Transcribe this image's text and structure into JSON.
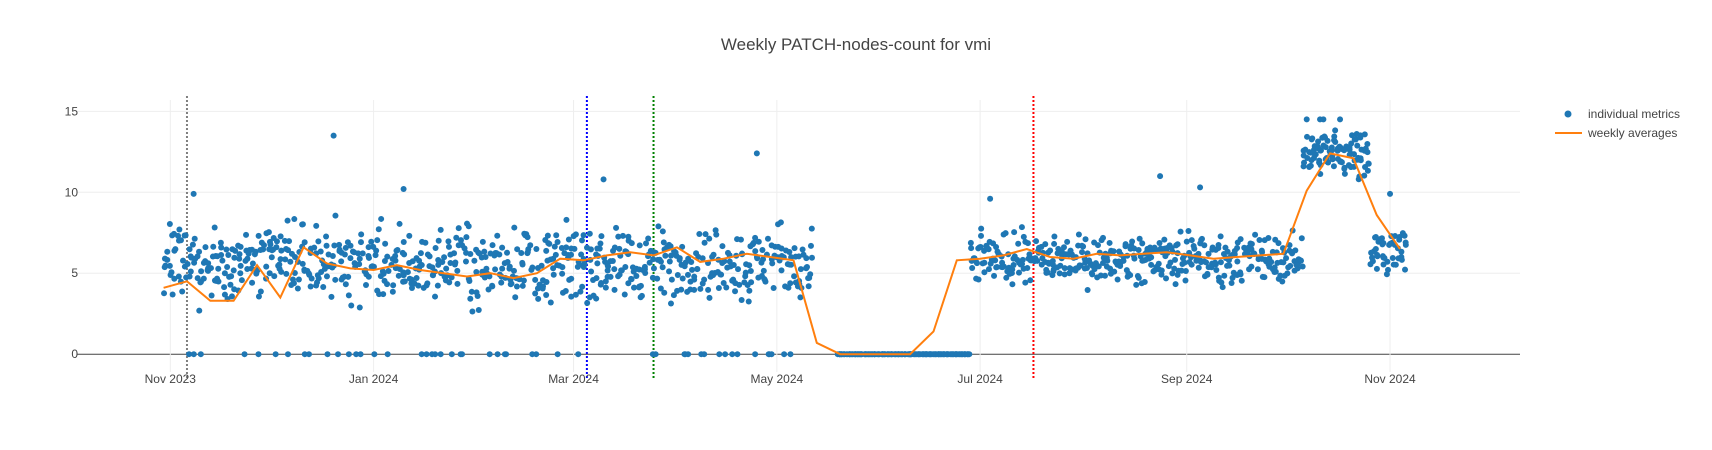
{
  "chart_data": {
    "type": "scatter",
    "title": "Weekly PATCH-nodes-count for vmi",
    "xlabel": "",
    "ylabel": "",
    "x_range": [
      "2023-10-04",
      "2024-12-10"
    ],
    "ylim": [
      -1.1,
      15.7
    ],
    "x_ticks": [
      {
        "date": "2023-11-01",
        "label": "Nov 2023"
      },
      {
        "date": "2024-01-01",
        "label": "Jan 2024"
      },
      {
        "date": "2024-03-01",
        "label": "Mar 2024"
      },
      {
        "date": "2024-05-01",
        "label": "May 2024"
      },
      {
        "date": "2024-07-01",
        "label": "Jul 2024"
      },
      {
        "date": "2024-09-01",
        "label": "Sep 2024"
      },
      {
        "date": "2024-11-01",
        "label": "Nov 2024"
      }
    ],
    "y_ticks": [
      0,
      5,
      10,
      15
    ],
    "grid": true,
    "legend_position": "top-right",
    "vlines": [
      {
        "date": "2023-11-06",
        "color": "#7f7f7f",
        "style": "dotted"
      },
      {
        "date": "2024-03-05",
        "color": "#0000ff",
        "style": "dotted"
      },
      {
        "date": "2024-03-25",
        "color": "#008000",
        "style": "dotted"
      },
      {
        "date": "2024-07-17",
        "color": "#ff0000",
        "style": "dotted"
      }
    ],
    "series": [
      {
        "name": "individual metrics",
        "mode": "markers",
        "color": "#1f77b4",
        "segments": [
          {
            "start": "2023-10-30",
            "end": "2024-05-11",
            "center": 5.6,
            "spread": 1.7,
            "points_per_day": 4,
            "zero_fraction": 0.06
          },
          {
            "start": "2024-05-19",
            "end": "2024-06-27",
            "center": 0,
            "spread": 0,
            "points_per_day": 4,
            "zero_fraction": 1
          },
          {
            "start": "2024-06-28",
            "end": "2024-10-05",
            "center": 5.9,
            "spread": 1.1,
            "points_per_day": 4,
            "zero_fraction": 0
          },
          {
            "start": "2024-10-06",
            "end": "2024-10-25",
            "center": 12.4,
            "spread": 1.1,
            "points_per_day": 5,
            "zero_fraction": 0
          },
          {
            "start": "2024-10-26",
            "end": "2024-11-05",
            "center": 6.4,
            "spread": 1.0,
            "points_per_day": 4,
            "zero_fraction": 0
          }
        ],
        "outliers": [
          {
            "x": "2023-12-20",
            "y": 13.5
          },
          {
            "x": "2024-04-25",
            "y": 12.4
          },
          {
            "x": "2023-11-08",
            "y": 9.9
          },
          {
            "x": "2024-01-10",
            "y": 10.2
          },
          {
            "x": "2024-03-10",
            "y": 10.8
          },
          {
            "x": "2024-08-24",
            "y": 11.0
          },
          {
            "x": "2024-09-05",
            "y": 10.3
          },
          {
            "x": "2024-07-04",
            "y": 9.6
          },
          {
            "x": "2024-10-07",
            "y": 14.5
          },
          {
            "x": "2024-10-11",
            "y": 14.5
          },
          {
            "x": "2024-10-12",
            "y": 14.5
          },
          {
            "x": "2024-10-17",
            "y": 14.5
          },
          {
            "x": "2024-10-22",
            "y": 13.6
          },
          {
            "x": "2024-11-01",
            "y": 9.9
          },
          {
            "x": "2024-05-25",
            "y": 0
          },
          {
            "x": "2024-06-10",
            "y": 0
          }
        ]
      },
      {
        "name": "weekly averages",
        "mode": "lines",
        "color": "#ff7f0e",
        "points": [
          [
            "2023-10-30",
            4.1
          ],
          [
            "2023-11-06",
            4.5
          ],
          [
            "2023-11-13",
            3.3
          ],
          [
            "2023-11-20",
            3.3
          ],
          [
            "2023-11-27",
            5.5
          ],
          [
            "2023-12-04",
            3.5
          ],
          [
            "2023-12-11",
            6.6
          ],
          [
            "2023-12-18",
            5.6
          ],
          [
            "2023-12-25",
            5.3
          ],
          [
            "2024-01-01",
            5.2
          ],
          [
            "2024-01-08",
            5.5
          ],
          [
            "2024-01-15",
            5.2
          ],
          [
            "2024-01-22",
            5.0
          ],
          [
            "2024-01-29",
            4.8
          ],
          [
            "2024-02-05",
            5.0
          ],
          [
            "2024-02-12",
            4.7
          ],
          [
            "2024-02-19",
            5.0
          ],
          [
            "2024-02-26",
            5.9
          ],
          [
            "2024-03-04",
            5.8
          ],
          [
            "2024-03-11",
            6.1
          ],
          [
            "2024-03-18",
            6.3
          ],
          [
            "2024-03-25",
            6.1
          ],
          [
            "2024-04-01",
            6.6
          ],
          [
            "2024-04-08",
            5.7
          ],
          [
            "2024-04-15",
            5.9
          ],
          [
            "2024-04-22",
            6.2
          ],
          [
            "2024-04-29",
            6.0
          ],
          [
            "2024-05-06",
            5.8
          ],
          [
            "2024-05-13",
            0.7
          ],
          [
            "2024-05-20",
            0.0
          ],
          [
            "2024-05-27",
            0.0
          ],
          [
            "2024-06-03",
            0.0
          ],
          [
            "2024-06-10",
            0.0
          ],
          [
            "2024-06-17",
            1.4
          ],
          [
            "2024-06-24",
            5.8
          ],
          [
            "2024-07-01",
            5.9
          ],
          [
            "2024-07-08",
            6.1
          ],
          [
            "2024-07-15",
            6.5
          ],
          [
            "2024-07-22",
            6.0
          ],
          [
            "2024-07-29",
            5.9
          ],
          [
            "2024-08-05",
            6.2
          ],
          [
            "2024-08-12",
            6.1
          ],
          [
            "2024-08-19",
            6.2
          ],
          [
            "2024-08-26",
            6.3
          ],
          [
            "2024-09-02",
            6.1
          ],
          [
            "2024-09-09",
            5.9
          ],
          [
            "2024-09-16",
            6.0
          ],
          [
            "2024-09-23",
            6.1
          ],
          [
            "2024-09-30",
            6.2
          ],
          [
            "2024-10-07",
            10.1
          ],
          [
            "2024-10-14",
            12.4
          ],
          [
            "2024-10-21",
            12.1
          ],
          [
            "2024-10-28",
            8.6
          ],
          [
            "2024-11-04",
            6.5
          ]
        ]
      }
    ]
  },
  "legend": [
    {
      "label": "individual metrics",
      "color": "#1f77b4"
    },
    {
      "label": "weekly averages",
      "color": "#ff7f0e"
    }
  ]
}
